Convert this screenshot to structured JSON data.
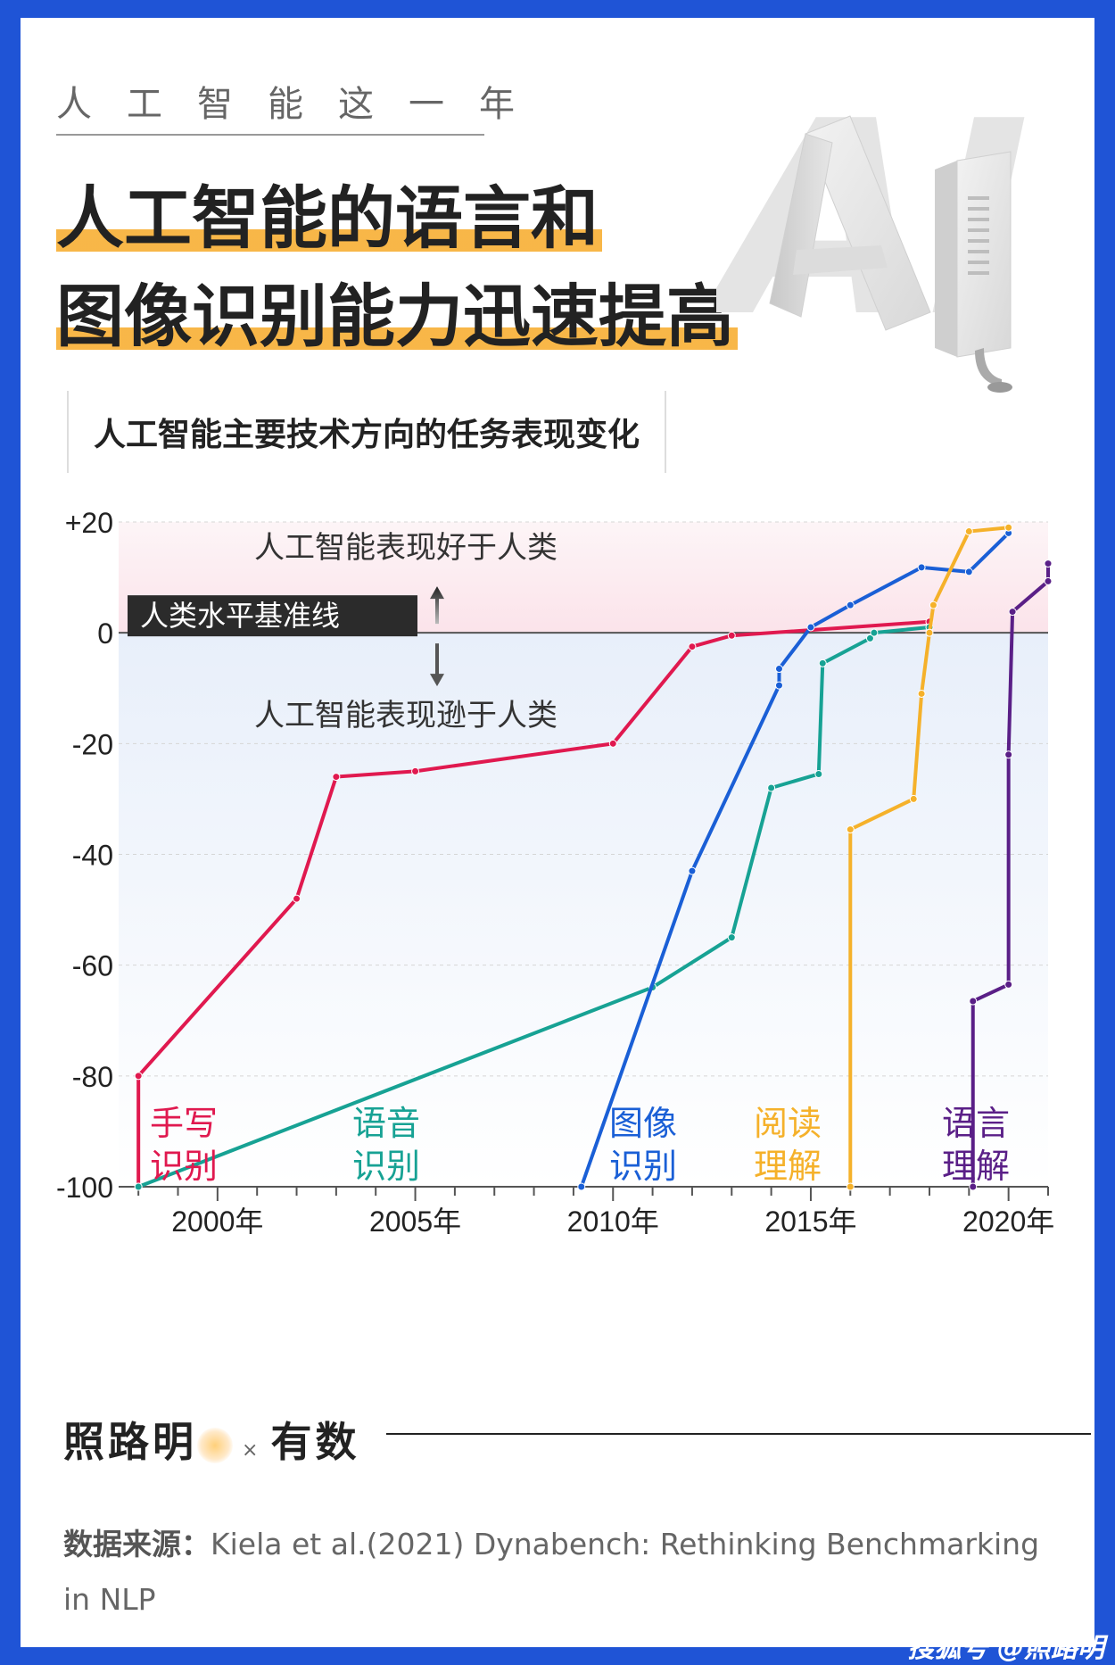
{
  "header": {
    "kicker": "人工智能这一年",
    "title_line1": "人工智能的语言和",
    "title_line2": "图像识别能力迅速提高",
    "subtitle": "人工智能主要技术方向的任务表现变化"
  },
  "logo_text": "AI",
  "chart_data": {
    "type": "line",
    "title": "人工智能主要技术方向的任务表现变化",
    "baseline_label": "人类水平基准线",
    "above_label": "人工智能表现好于人类",
    "below_label": "人工智能表现逊于人类",
    "ylim": [
      -100,
      20
    ],
    "xlim": [
      1997.5,
      2021.0
    ],
    "y_ticks": [
      {
        "v": 20,
        "label": "+20"
      },
      {
        "v": 0,
        "label": "0"
      },
      {
        "v": -20,
        "label": "-20"
      },
      {
        "v": -40,
        "label": "-40"
      },
      {
        "v": -60,
        "label": "-60"
      },
      {
        "v": -80,
        "label": "-80"
      },
      {
        "v": -100,
        "label": "-100"
      }
    ],
    "x_ticks": [
      {
        "v": 2000,
        "label": "2000年"
      },
      {
        "v": 2005,
        "label": "2005年"
      },
      {
        "v": 2010,
        "label": "2010年"
      },
      {
        "v": 2015,
        "label": "2015年"
      },
      {
        "v": 2020,
        "label": "2020年"
      }
    ],
    "grid": true,
    "series": [
      {
        "name": "手写识别",
        "label_lines": [
          "手写",
          "识别"
        ],
        "color": "#e0194f",
        "points": [
          [
            1998,
            -100
          ],
          [
            1998,
            -80
          ],
          [
            2002,
            -48
          ],
          [
            2003,
            -26
          ],
          [
            2005,
            -25
          ],
          [
            2010,
            -20
          ],
          [
            2012,
            -2.5
          ],
          [
            2013,
            -0.5
          ],
          [
            2018,
            2
          ]
        ]
      },
      {
        "name": "语音识别",
        "label_lines": [
          "语音",
          "识别"
        ],
        "color": "#17a294",
        "points": [
          [
            1998,
            -100
          ],
          [
            2011,
            -64
          ],
          [
            2013,
            -55
          ],
          [
            2014,
            -28
          ],
          [
            2015.2,
            -25.5
          ],
          [
            2015.3,
            -5.5
          ],
          [
            2016.5,
            -1
          ],
          [
            2016.6,
            0
          ],
          [
            2018,
            1
          ]
        ]
      },
      {
        "name": "图像识别",
        "label_lines": [
          "图像",
          "识别"
        ],
        "color": "#1a5fd6",
        "points": [
          [
            2009.2,
            -100
          ],
          [
            2012,
            -43
          ],
          [
            2014.2,
            -9.5
          ],
          [
            2014.2,
            -6.5
          ],
          [
            2015,
            1
          ],
          [
            2016,
            5
          ],
          [
            2017.8,
            11.8
          ],
          [
            2019,
            11
          ],
          [
            2020,
            18
          ]
        ]
      },
      {
        "name": "阅读理解",
        "label_lines": [
          "阅读",
          "理解"
        ],
        "color": "#f5b12a",
        "points": [
          [
            2016,
            -100
          ],
          [
            2016,
            -35.5
          ],
          [
            2017.6,
            -30
          ],
          [
            2017.8,
            -11
          ],
          [
            2018,
            0
          ],
          [
            2018.1,
            5
          ],
          [
            2019,
            18.3
          ],
          [
            2020,
            19
          ]
        ]
      },
      {
        "name": "语言理解",
        "label_lines": [
          "语言",
          "理解"
        ],
        "color": "#5a1f87",
        "points": [
          [
            2019.1,
            -100
          ],
          [
            2019.1,
            -66.5
          ],
          [
            2020,
            -63.5
          ],
          [
            2020,
            -22
          ],
          [
            2020.1,
            3.8
          ],
          [
            2021,
            9.3
          ],
          [
            2021,
            12.5
          ]
        ]
      }
    ]
  },
  "footer": {
    "brand_left": "照路明",
    "separator": "×",
    "brand_right": "有数",
    "source_label": "数据来源：",
    "source_text": "Kiela et al.(2021) Dynabench: Rethinking Benchmarking in NLP"
  },
  "watermark": "搜狐号 @照路明"
}
